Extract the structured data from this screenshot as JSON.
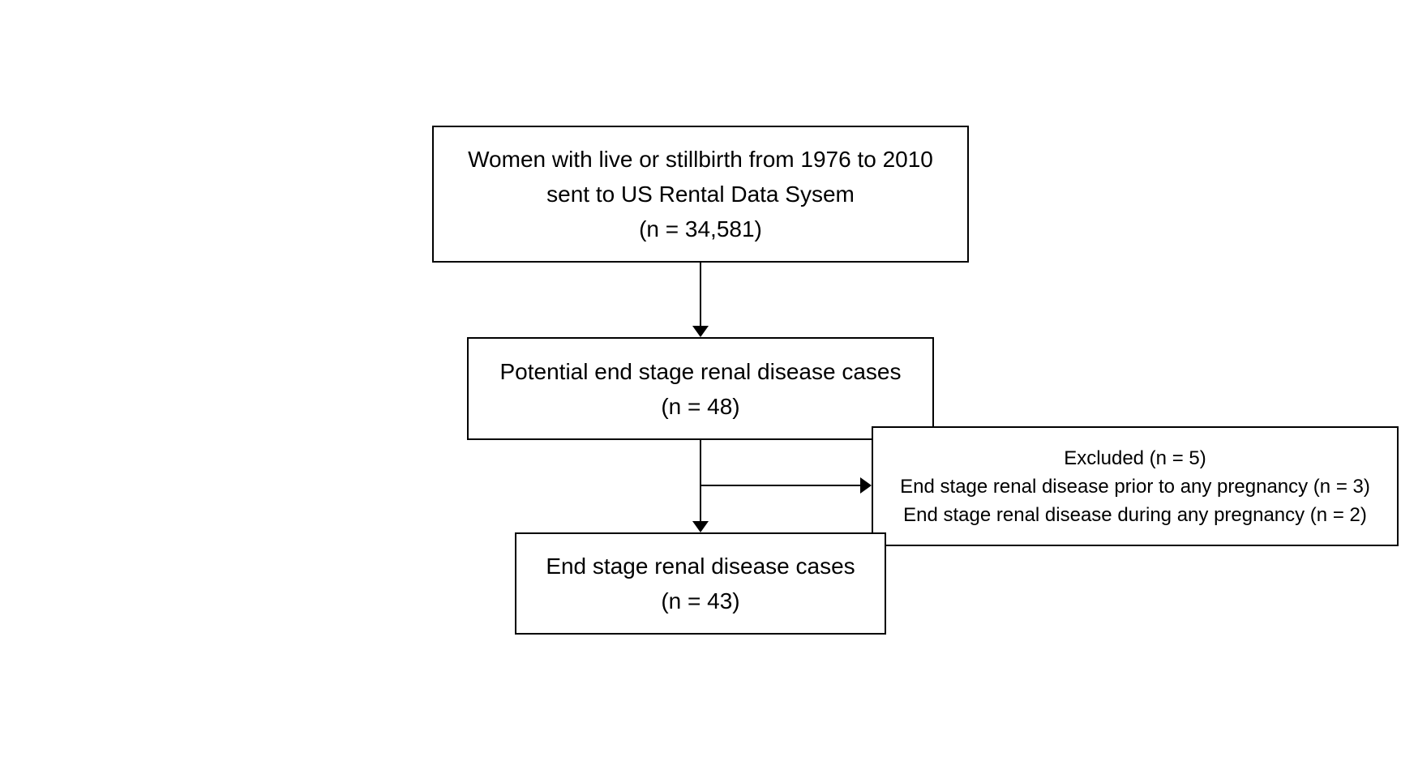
{
  "flowchart": {
    "source": {
      "line1": "Women with live or stillbirth from 1976 to 2010",
      "line2": "sent to US Rental Data Sysem",
      "count": "(n = 34,581)"
    },
    "potential": {
      "line1": "Potential end stage renal disease cases",
      "count": "(n = 48)"
    },
    "excluded": {
      "title": "Excluded (n = 5)",
      "reason1": "End stage renal disease prior to any pregnancy (n = 3)",
      "reason2": "End stage renal disease during any pregnancy (n = 2)"
    },
    "final": {
      "line1": "End stage renal disease cases",
      "count": "(n = 43)"
    }
  }
}
